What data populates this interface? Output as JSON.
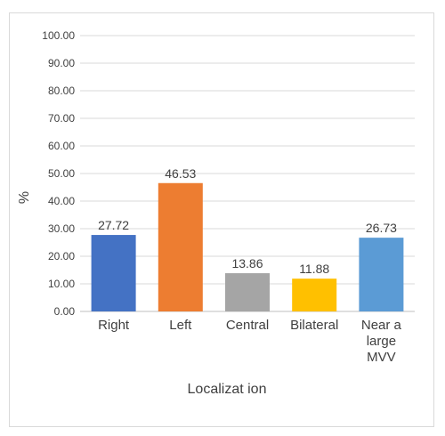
{
  "chart_data": {
    "type": "bar",
    "categories": [
      "Right",
      "Left",
      "Central",
      "Bilateral",
      "Near a large MVV"
    ],
    "category_lines": [
      [
        "Right"
      ],
      [
        "Left"
      ],
      [
        "Central"
      ],
      [
        "Bilateral"
      ],
      [
        "Near a",
        "large",
        "MVV"
      ]
    ],
    "values": [
      27.72,
      46.53,
      13.86,
      11.88,
      26.73
    ],
    "value_labels": [
      "27.72",
      "46.53",
      "13.86",
      "11.88",
      "26.73"
    ],
    "colors": [
      "#4472c4",
      "#ed7d31",
      "#a5a5a5",
      "#ffc000",
      "#5b9bd5"
    ],
    "title": "",
    "xlabel": "Localizat ion",
    "ylabel": "%",
    "ylim": [
      0,
      100
    ],
    "yticks": [
      "0.00",
      "10.00",
      "20.00",
      "30.00",
      "40.00",
      "50.00",
      "60.00",
      "70.00",
      "80.00",
      "90.00",
      "100.00"
    ],
    "grid": true,
    "legend": "none"
  }
}
